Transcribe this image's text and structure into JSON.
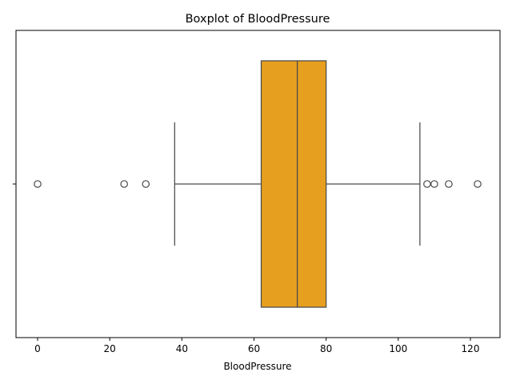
{
  "chart_data": {
    "type": "boxplot",
    "title": "Boxplot of BloodPressure",
    "xlabel": "BloodPressure",
    "ylabel": "",
    "orientation": "horizontal",
    "xlim": [
      -5,
      128
    ],
    "xticks": [
      0,
      20,
      40,
      60,
      80,
      100,
      120
    ],
    "xtick_labels": [
      "0",
      "20",
      "40",
      "60",
      "80",
      "100",
      "120"
    ],
    "grid": false,
    "series": [
      {
        "q1": 62,
        "median": 72,
        "q3": 80,
        "whisker_low": 38,
        "whisker_high": 106,
        "outliers": [
          0,
          24,
          30,
          108,
          110,
          114,
          122
        ]
      }
    ],
    "colors": {
      "box_fill": "#E69F1E",
      "line": "#4a4a4a",
      "outlier_edge": "#4a4a4a",
      "axes": "#000000"
    }
  }
}
